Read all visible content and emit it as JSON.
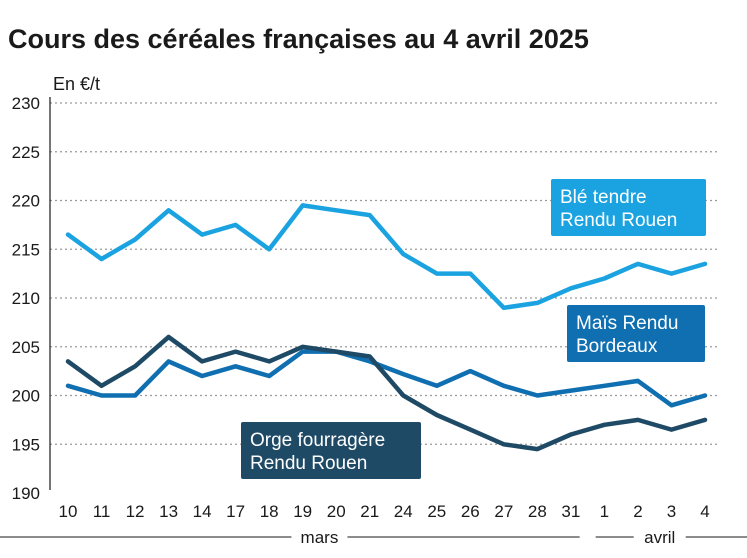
{
  "chart_data": {
    "type": "line",
    "title": "Cours des céréales françaises au 4 avril 2025",
    "ylabel": "En €/t",
    "xlabel": "",
    "ylim": [
      190,
      230
    ],
    "yticks": [
      190,
      195,
      200,
      205,
      210,
      215,
      220,
      225,
      230
    ],
    "categories": [
      "10",
      "11",
      "12",
      "13",
      "14",
      "17",
      "18",
      "19",
      "20",
      "21",
      "24",
      "25",
      "26",
      "27",
      "28",
      "31",
      "1",
      "2",
      "3",
      "4"
    ],
    "months": [
      {
        "label": "mars",
        "from": "10",
        "to": "31"
      },
      {
        "label": "avril",
        "from": "1",
        "to": "4"
      }
    ],
    "grid": true,
    "series": [
      {
        "name": "Blé tendre Rendu Rouen",
        "label_lines": [
          "Blé tendre",
          "Rendu Rouen"
        ],
        "color": "#1aa3e0",
        "values": [
          216.5,
          214,
          216,
          219,
          216.5,
          217.5,
          215,
          219.5,
          219,
          218.5,
          214.5,
          212.5,
          212.5,
          209,
          209.5,
          211,
          212,
          213.5,
          212.5,
          213.5
        ]
      },
      {
        "name": "Maïs Rendu Bordeaux",
        "label_lines": [
          "Maïs Rendu",
          "Bordeaux"
        ],
        "color": "#0f6fb0",
        "values": [
          201,
          200,
          200,
          203.5,
          202,
          203,
          202,
          204.5,
          204.5,
          203.5,
          202.2,
          201,
          202.5,
          201,
          200,
          200.5,
          201,
          201.5,
          199,
          200
        ]
      },
      {
        "name": "Orge fourragère Rendu Rouen",
        "label_lines": [
          "Orge fourragère",
          "Rendu Rouen"
        ],
        "color": "#1e4a66",
        "values": [
          203.5,
          201,
          203,
          206,
          203.5,
          204.5,
          203.5,
          205,
          204.5,
          204,
          200,
          198,
          196.5,
          195,
          194.5,
          196,
          197,
          197.5,
          196.5,
          197.5
        ]
      }
    ]
  }
}
